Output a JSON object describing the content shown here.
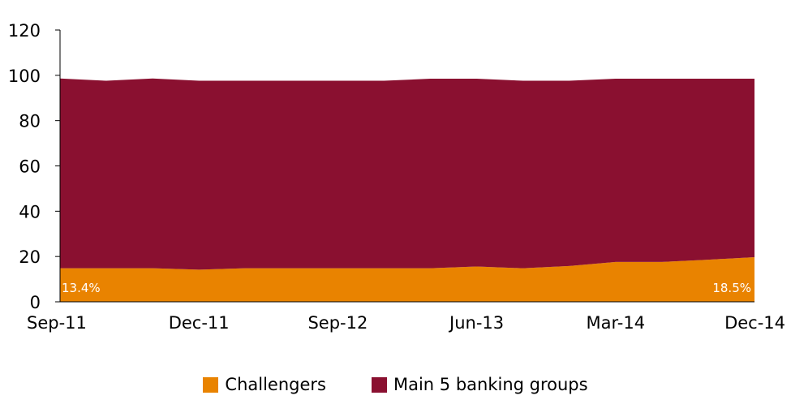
{
  "chart_data": {
    "type": "area",
    "stacked": true,
    "x_tick_labels": [
      "Sep-11",
      "Dec-11",
      "Sep-12",
      "Jun-13",
      "Mar-14",
      "Dec-14"
    ],
    "y_ticks": [
      0,
      20,
      40,
      60,
      80,
      100,
      120
    ],
    "ylim": [
      0,
      120
    ],
    "grid": false,
    "legend_position": "bottom",
    "series": [
      {
        "name": "Challengers",
        "color": "#E98300",
        "values": [
          14.8,
          14.8,
          14.8,
          14.2,
          14.8,
          14.8,
          14.8,
          14.8,
          14.8,
          15.6,
          14.8,
          15.8,
          17.6,
          17.6,
          18.6,
          19.7
        ]
      },
      {
        "name": "Main 5 banking groups",
        "color": "#8A1030",
        "values": [
          83.8,
          82.8,
          83.8,
          83.4,
          82.8,
          82.8,
          82.8,
          82.8,
          83.7,
          82.9,
          82.8,
          81.8,
          80.9,
          80.9,
          79.9,
          78.8
        ]
      }
    ],
    "annotations": [
      {
        "text": "13.4%",
        "anchor": "start"
      },
      {
        "text": "18.5%",
        "anchor": "end"
      }
    ]
  }
}
